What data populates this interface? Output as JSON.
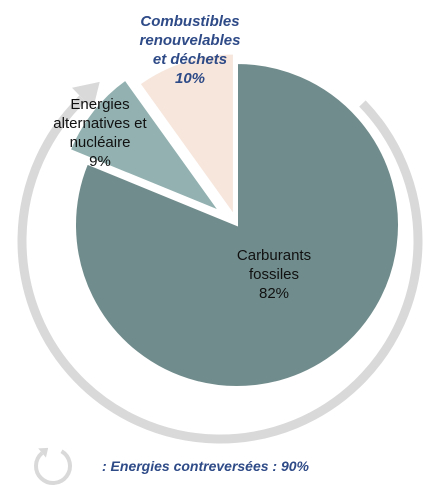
{
  "chart_data": {
    "type": "pie",
    "title": "",
    "slices": [
      {
        "label_lines": [
          "Carburants",
          "fossiles",
          "82%"
        ],
        "value": 82,
        "color": "#718c8c",
        "emphasis": false
      },
      {
        "label_lines": [
          "Energies",
          "alternatives et",
          "nucléaire",
          "9%"
        ],
        "value": 9,
        "color": "#92b1b0",
        "emphasis": false
      },
      {
        "label_lines": [
          "Combustibles",
          "renouvelables",
          "et déchets",
          "10%"
        ],
        "value": 10,
        "color": "#f6e6dc",
        "emphasis": true
      }
    ],
    "arrow_color": "#d9d9d9",
    "legend": {
      "text": ": Energies contreversées : 90%",
      "color": "#2e4a87"
    }
  }
}
